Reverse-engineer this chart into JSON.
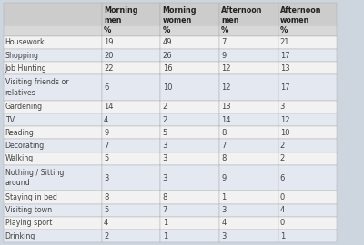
{
  "col_headers": [
    "Morning\nmen",
    "Morning\nwomen",
    "Afternoon\nmen",
    "Afternoon\nwomen"
  ],
  "sub_headers": [
    "%",
    "%",
    "%",
    "%"
  ],
  "rows": [
    [
      "Housework",
      "19",
      "49",
      "7",
      "21"
    ],
    [
      "Shopping",
      "20",
      "26",
      "9",
      "17"
    ],
    [
      "Job Hunting",
      "22",
      "16",
      "12",
      "13"
    ],
    [
      "Visiting friends or\nrelatives",
      "6",
      "10",
      "12",
      "17"
    ],
    [
      "Gardening",
      "14",
      "2",
      "13",
      "3"
    ],
    [
      "TV",
      "4",
      "2",
      "14",
      "12"
    ],
    [
      "Reading",
      "9",
      "5",
      "8",
      "10"
    ],
    [
      "Decorating",
      "7",
      "3",
      "7",
      "2"
    ],
    [
      "Walking",
      "5",
      "3",
      "8",
      "2"
    ],
    [
      "Nothing / Sitting\naround",
      "3",
      "3",
      "9",
      "6"
    ],
    [
      "Staying in bed",
      "8",
      "8",
      "1",
      "0"
    ],
    [
      "Visiting town",
      "5",
      "7",
      "3",
      "4"
    ],
    [
      "Playing sport",
      "4",
      "1",
      "4",
      "0"
    ],
    [
      "Drinking",
      "2",
      "1",
      "3",
      "1"
    ]
  ],
  "header_bg": "#cccccc",
  "subheader_bg": "#d8d8d8",
  "odd_row_bg": "#f2f2f2",
  "even_row_bg": "#e4e8f0",
  "border_color": "#aaaaaa",
  "text_color": "#444444",
  "header_text_color": "#222222",
  "figure_bg": "#cdd5de",
  "table_bg": "#f8f8f8"
}
